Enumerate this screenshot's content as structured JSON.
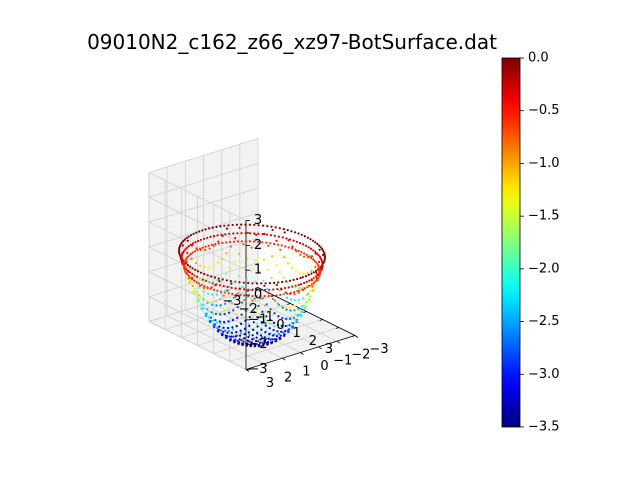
{
  "chart_data": {
    "type": "scatter",
    "subtype": "3d-scatter",
    "title": "09010N2_c162_z66_xz97-BotSurface.dat",
    "xlabel": "",
    "ylabel": "",
    "zlabel": "",
    "x_ticks": [
      "−3",
      "−2",
      "−1",
      "0",
      "1",
      "2",
      "3"
    ],
    "y_ticks": [
      "−3",
      "−2",
      "−1",
      "0",
      "1",
      "2",
      "3"
    ],
    "z_ticks": [
      "−3",
      "−2",
      "−1",
      "0",
      "1",
      "2",
      "3"
    ],
    "xlim": [
      -3,
      3
    ],
    "ylim": [
      -3,
      3
    ],
    "zlim": [
      -3,
      3
    ],
    "grid": true,
    "colormap": "jet",
    "colorbar": {
      "range": [
        -3.5,
        0.0
      ],
      "ticks": [
        "0.0",
        "−0.5",
        "−1.0",
        "−1.5",
        "−2.0",
        "−2.5",
        "−3.0",
        "−3.5"
      ]
    },
    "surface": {
      "description_of_shape": "bowl",
      "rim_radius": 3.0,
      "bottom_value": -3.5,
      "rim_value": 0.0
    },
    "pane_color": "#f2f2f2",
    "grid_color": "#d0d0d0"
  }
}
